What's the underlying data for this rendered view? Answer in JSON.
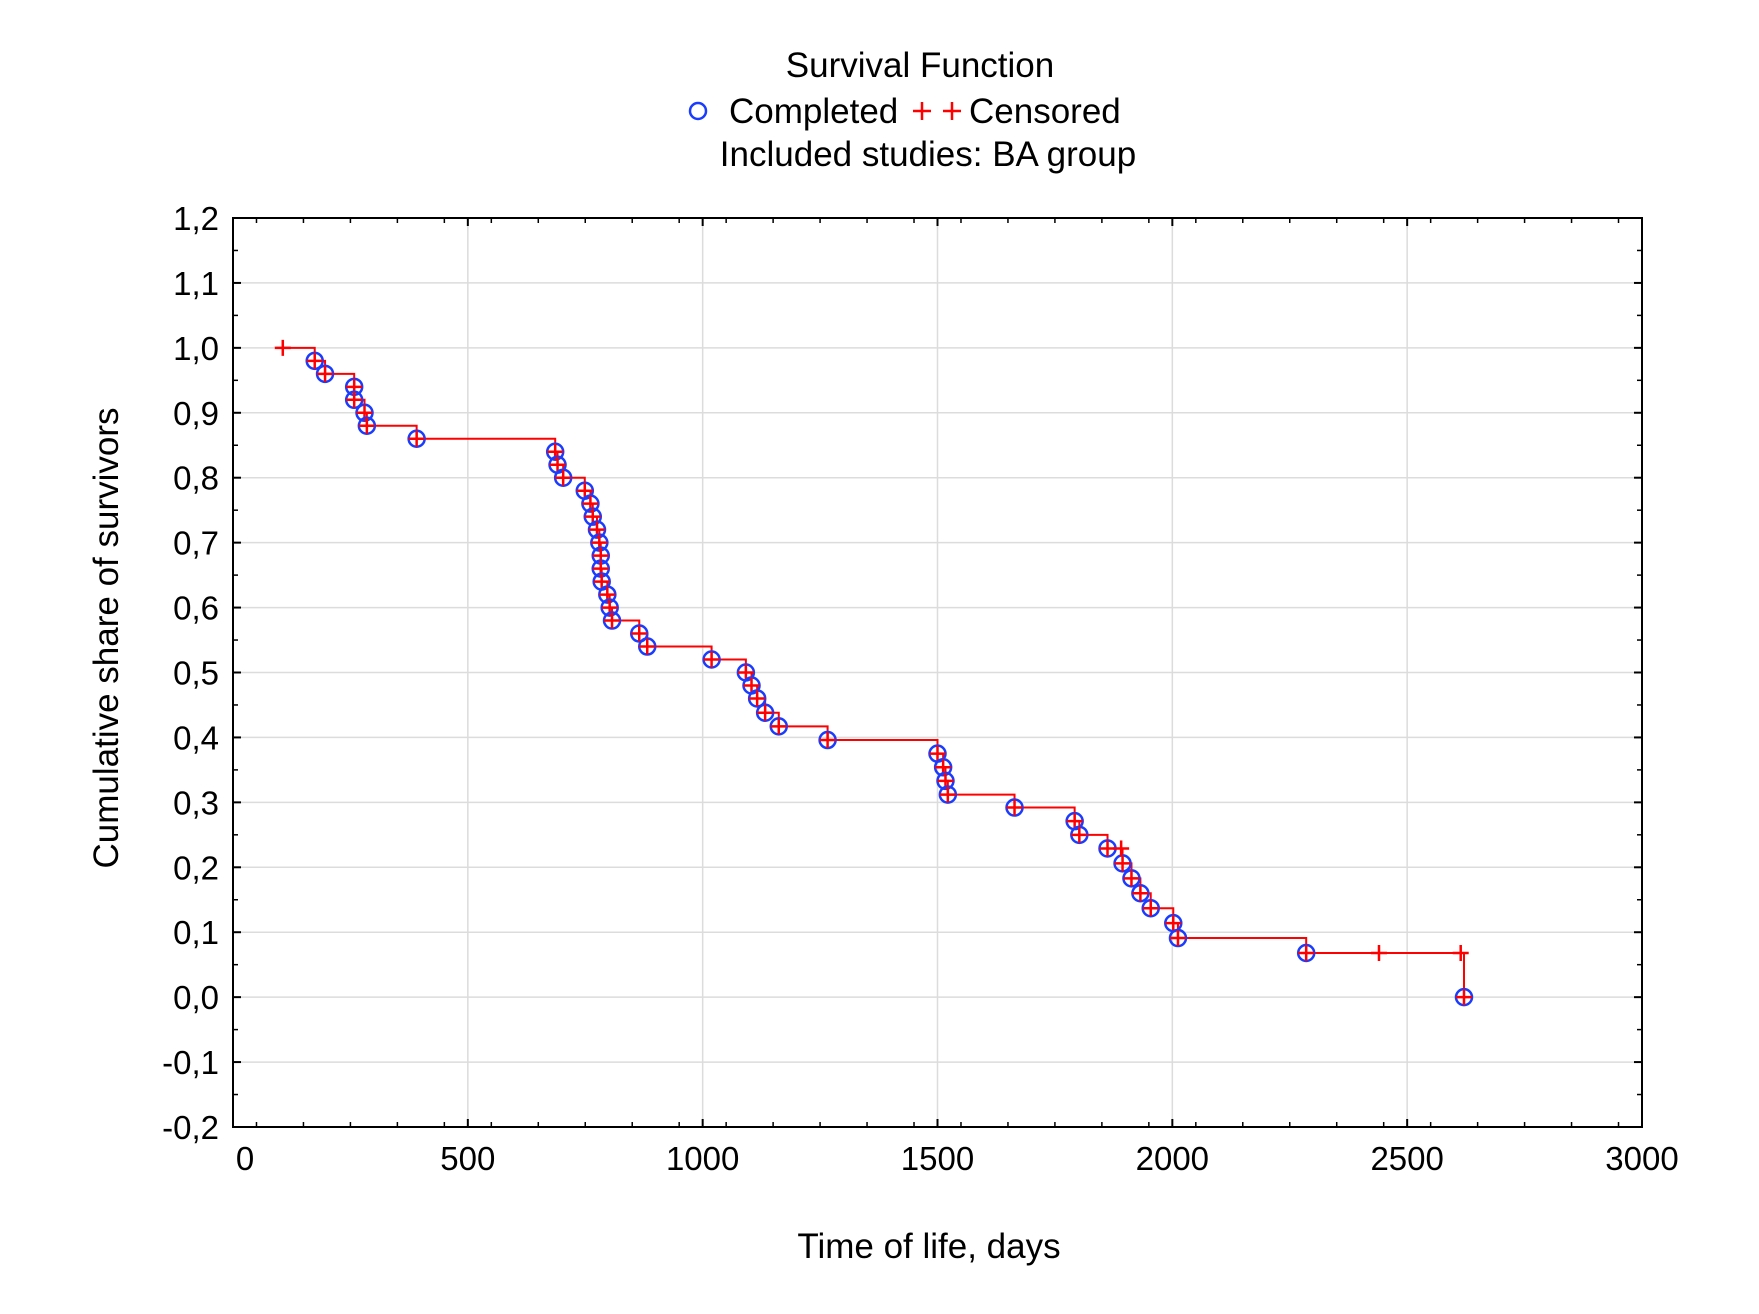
{
  "chart_data": {
    "type": "line",
    "title": "Survival Function",
    "subtitle": "Included studies: BA group",
    "legend": [
      {
        "label": "Completed",
        "marker": "circle",
        "color": "#1a3cff"
      },
      {
        "label": "Censored",
        "marker": "plus",
        "color": "#ff0000"
      }
    ],
    "legend_placement": "top-center",
    "xlabel": "Time of life, days",
    "ylabel": "Cumulative share of survivors",
    "xlim": [
      0,
      3000
    ],
    "ylim": [
      -0.2,
      1.2
    ],
    "xticks": [
      "0",
      "500",
      "1000",
      "1500",
      "2000",
      "2500",
      "3000"
    ],
    "yticks": [
      "-0,2",
      "-0,1",
      "0,0",
      "0,1",
      "0,2",
      "0,3",
      "0,4",
      "0,5",
      "0,6",
      "0,7",
      "0,8",
      "0,9",
      "1,0",
      "1,1",
      "1,2"
    ],
    "grid": true,
    "line_color": "#ff0000",
    "events": [
      [
        174,
        0.98
      ],
      [
        196,
        0.96
      ],
      [
        258,
        0.94
      ],
      [
        258,
        0.92
      ],
      [
        280,
        0.9
      ],
      [
        285,
        0.88
      ],
      [
        391,
        0.86
      ],
      [
        686,
        0.84
      ],
      [
        691,
        0.82
      ],
      [
        703,
        0.8
      ],
      [
        749,
        0.78
      ],
      [
        761,
        0.76
      ],
      [
        766,
        0.74
      ],
      [
        775,
        0.72
      ],
      [
        780,
        0.7
      ],
      [
        783,
        0.68
      ],
      [
        783,
        0.66
      ],
      [
        785,
        0.64
      ],
      [
        797,
        0.62
      ],
      [
        802,
        0.6
      ],
      [
        807,
        0.58
      ],
      [
        865,
        0.56
      ],
      [
        882,
        0.54
      ],
      [
        1019,
        0.52
      ],
      [
        1092,
        0.5
      ],
      [
        1104,
        0.48
      ],
      [
        1116,
        0.46
      ],
      [
        1133,
        0.438
      ],
      [
        1162,
        0.417
      ],
      [
        1266,
        0.396
      ],
      [
        1500,
        0.375
      ],
      [
        1512,
        0.354
      ],
      [
        1517,
        0.333
      ],
      [
        1522,
        0.312
      ],
      [
        1664,
        0.292
      ],
      [
        1792,
        0.271
      ],
      [
        1802,
        0.25
      ],
      [
        1862,
        0.229
      ],
      [
        1894,
        0.206
      ],
      [
        1913,
        0.183
      ],
      [
        1932,
        0.16
      ],
      [
        1954,
        0.137
      ],
      [
        2002,
        0.114
      ],
      [
        2012,
        0.091
      ],
      [
        2285,
        0.068
      ],
      [
        2621,
        0.0
      ]
    ],
    "censored": [
      [
        106,
        1.0
      ],
      [
        1891,
        0.229
      ],
      [
        2440,
        0.068
      ],
      [
        2614,
        0.068
      ]
    ]
  }
}
